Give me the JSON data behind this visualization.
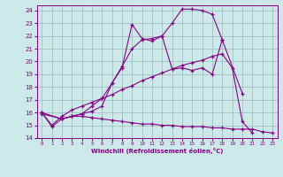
{
  "xlabel": "Windchill (Refroidissement éolien,°C)",
  "xlim": [
    -0.5,
    23.5
  ],
  "ylim": [
    14,
    24.4
  ],
  "yticks": [
    14,
    15,
    16,
    17,
    18,
    19,
    20,
    21,
    22,
    23,
    24
  ],
  "xticks": [
    0,
    1,
    2,
    3,
    4,
    5,
    6,
    7,
    8,
    9,
    10,
    11,
    12,
    13,
    14,
    15,
    16,
    17,
    18,
    19,
    20,
    21,
    22,
    23
  ],
  "bg_color": "#cce8e8",
  "line_color": "#880088",
  "grid_color": "#99bbbb",
  "lines": [
    {
      "x": [
        0,
        1,
        2,
        3,
        4,
        5,
        6,
        7,
        8,
        9,
        10,
        11,
        12,
        13,
        14,
        15,
        16,
        17,
        18,
        19,
        20,
        21,
        22,
        23
      ],
      "y": [
        16.0,
        14.9,
        15.5,
        15.7,
        15.7,
        15.6,
        15.5,
        15.4,
        15.3,
        15.2,
        15.1,
        15.1,
        15.0,
        15.0,
        14.9,
        14.9,
        14.9,
        14.8,
        14.8,
        14.7,
        14.7,
        14.7,
        14.5,
        14.4
      ]
    },
    {
      "x": [
        0,
        1,
        2,
        3,
        4,
        5,
        6,
        7,
        8,
        9,
        10,
        11,
        12,
        13,
        14,
        15,
        16,
        17,
        18,
        19,
        20,
        21
      ],
      "y": [
        16.0,
        15.0,
        15.7,
        16.2,
        16.5,
        16.8,
        17.1,
        17.4,
        17.8,
        18.1,
        18.5,
        18.8,
        19.1,
        19.4,
        19.7,
        19.9,
        20.1,
        20.4,
        20.6,
        19.5,
        15.3,
        14.4
      ]
    },
    {
      "x": [
        0,
        2,
        3,
        4,
        5,
        6,
        7,
        8,
        9,
        10,
        11,
        12,
        13,
        14,
        15,
        16,
        17,
        18
      ],
      "y": [
        16.0,
        15.5,
        15.7,
        15.9,
        16.1,
        16.5,
        18.3,
        19.6,
        21.0,
        21.7,
        21.8,
        22.0,
        19.4,
        19.5,
        19.3,
        19.5,
        19.0,
        21.7
      ]
    },
    {
      "x": [
        0,
        2,
        3,
        4,
        5,
        6,
        7,
        8,
        9,
        10,
        11,
        12,
        13,
        14,
        15,
        16,
        17,
        18,
        20
      ],
      "y": [
        15.9,
        15.5,
        15.7,
        15.9,
        16.5,
        17.1,
        18.3,
        19.5,
        22.9,
        21.8,
        21.6,
        22.0,
        23.0,
        24.1,
        24.1,
        24.0,
        23.7,
        21.7,
        17.5
      ]
    }
  ]
}
